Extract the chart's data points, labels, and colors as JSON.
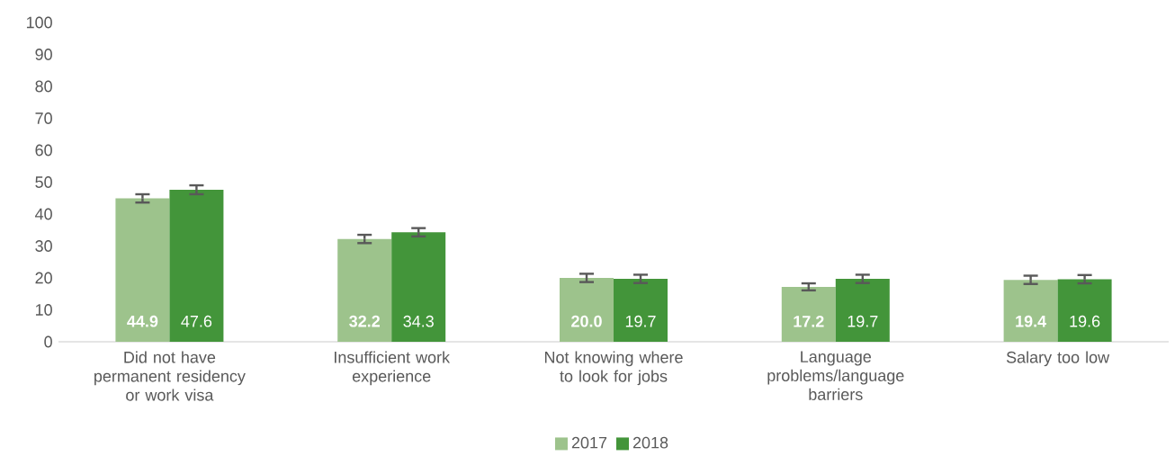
{
  "chart_data": {
    "type": "bar",
    "categories": [
      "Did not have permanent residency or work visa",
      "Insufficient work experience",
      "Not knowing where to look for jobs",
      "Language problems/language barriers",
      "Salary too low"
    ],
    "series": [
      {
        "name": "2017",
        "color": "#9dc38c",
        "values": [
          44.9,
          32.2,
          20.0,
          17.2,
          19.4
        ],
        "value_labels": [
          "44.9",
          "32.2",
          "20.0",
          "17.2",
          "19.4"
        ],
        "errors": [
          1.3,
          1.3,
          1.3,
          1.1,
          1.3
        ]
      },
      {
        "name": "2018",
        "color": "#43953a",
        "values": [
          47.6,
          34.3,
          19.7,
          19.7,
          19.6
        ],
        "value_labels": [
          "47.6",
          "34.3",
          "19.7",
          "19.7",
          "19.6"
        ],
        "errors": [
          1.4,
          1.3,
          1.3,
          1.3,
          1.3
        ]
      }
    ],
    "ylim": [
      0,
      100
    ],
    "yticks": [
      0,
      10,
      20,
      30,
      40,
      50,
      60,
      70,
      80,
      90,
      100
    ],
    "grid": false,
    "legend": "bottom"
  }
}
